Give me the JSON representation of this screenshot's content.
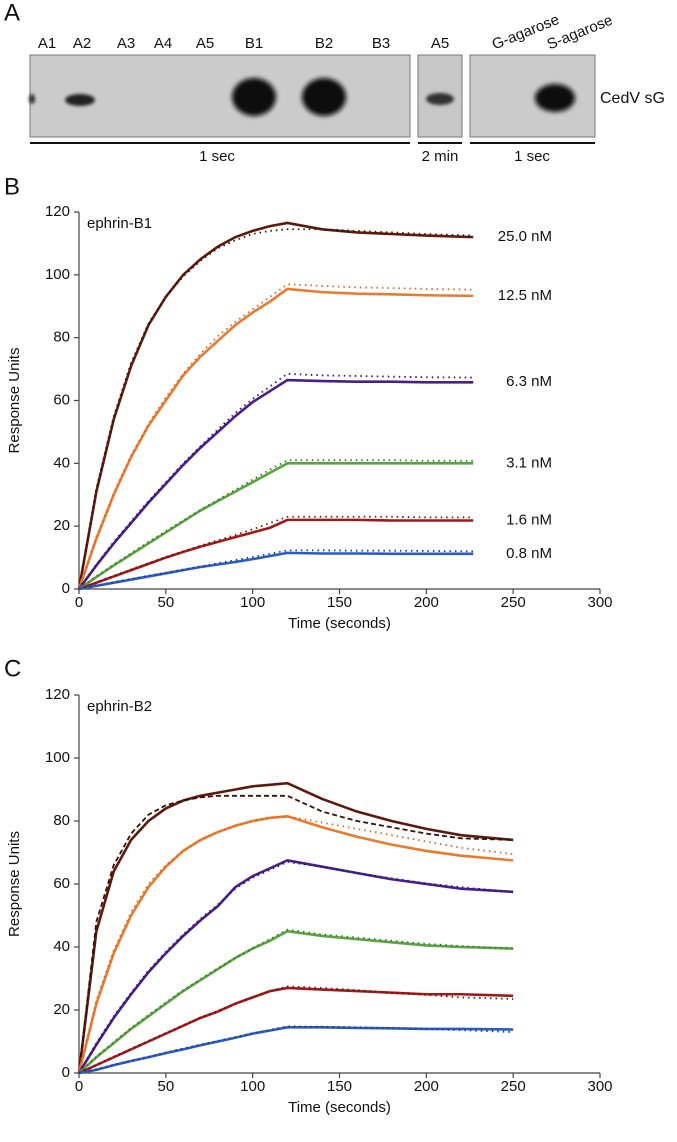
{
  "panel_labels": [
    "A",
    "B",
    "C"
  ],
  "blot": {
    "lanes": [
      "A1",
      "A2",
      "A3",
      "A4",
      "A5",
      "B1",
      "B2",
      "B3"
    ],
    "lane_2min": "A5",
    "lanes_agarose": [
      "G-agarose",
      "S-agarose"
    ],
    "protein": "CedV sG",
    "exposures": [
      "1 sec",
      "2 min",
      "1 sec"
    ]
  },
  "chart_data": [
    {
      "type": "line",
      "title": "ephrin-B1",
      "x_label": "Time (seconds)",
      "y_label": "Response Units",
      "x": [
        0,
        10,
        20,
        30,
        40,
        50,
        60,
        70,
        80,
        90,
        100,
        110,
        120,
        140,
        160,
        180,
        200,
        227
      ],
      "xlim": [
        0,
        300
      ],
      "xticks": [
        0,
        50,
        100,
        150,
        200,
        250,
        300
      ],
      "ylim": [
        0,
        120
      ],
      "yticks": [
        0,
        20,
        40,
        60,
        80,
        100,
        120
      ],
      "series": [
        {
          "name": "25.0 nM",
          "color": "#5b1a0c",
          "values": [
            0,
            31,
            54,
            71,
            84,
            93,
            100,
            105,
            109,
            112,
            114,
            115.5,
            116.5,
            114.5,
            113.5,
            113,
            112.5,
            112
          ]
        },
        {
          "color": "#3a1008",
          "line_style": "dotted",
          "values": [
            0,
            32,
            55,
            72,
            84.5,
            93,
            99.5,
            104.5,
            108.5,
            111,
            113,
            114,
            114.5,
            114.5,
            114,
            113.5,
            113,
            112.5
          ]
        },
        {
          "name": "12.5 nM",
          "color": "#ea7a2c",
          "values": [
            0,
            16,
            30,
            42,
            52,
            60,
            68,
            74,
            79,
            84,
            88,
            91.5,
            95.5,
            94.5,
            94,
            93.8,
            93.5,
            93.3
          ]
        },
        {
          "color": "#e0602a",
          "line_style": "dotted",
          "values": [
            0,
            16.5,
            30.5,
            42.5,
            52.5,
            61,
            68.5,
            75,
            80.5,
            85,
            89,
            93,
            97,
            96.5,
            96,
            95.8,
            95.5,
            95.3
          ]
        },
        {
          "name": "6.3 nM",
          "color": "#4a1d8c",
          "values": [
            0,
            7.5,
            14.5,
            21,
            27.5,
            33.5,
            39.5,
            45,
            50,
            55,
            59.5,
            63,
            66.5,
            66.2,
            66,
            66,
            65.8,
            65.8
          ]
        },
        {
          "color": "#2a1a6a",
          "line_style": "dotted",
          "values": [
            0,
            7.8,
            15,
            21.5,
            28,
            34,
            40,
            45.5,
            50.8,
            56,
            60.5,
            64.5,
            68.5,
            68,
            67.8,
            67.6,
            67.4,
            67.3
          ]
        },
        {
          "name": "3.1 nM",
          "color": "#5aa33e",
          "values": [
            0,
            3.8,
            7.5,
            11,
            14.5,
            18,
            21.5,
            25,
            28,
            31,
            34,
            37,
            40,
            40,
            40,
            40,
            40,
            40
          ]
        },
        {
          "color": "#2f7a2a",
          "line_style": "dotted",
          "values": [
            0,
            4,
            7.8,
            11.4,
            15,
            18.4,
            21.8,
            25.2,
            28.4,
            31.6,
            34.8,
            38,
            41,
            41,
            41,
            41,
            40.8,
            40.8
          ]
        },
        {
          "name": "1.6 nM",
          "color": "#a01818",
          "values": [
            0,
            2,
            4,
            6,
            8,
            10,
            11.8,
            13.5,
            15,
            16.5,
            18,
            19.5,
            22,
            22,
            22,
            21.8,
            21.8,
            21.8
          ]
        },
        {
          "color": "#701010",
          "line_style": "dotted",
          "values": [
            0,
            2.1,
            4.2,
            6.2,
            8.2,
            10.2,
            12,
            13.8,
            15.5,
            17.2,
            19,
            21,
            23,
            23,
            23,
            23,
            22.8,
            22.8
          ]
        },
        {
          "name": "0.8 nM",
          "color": "#2a5bc4",
          "values": [
            0,
            1,
            2,
            3,
            4,
            5,
            6,
            7,
            7.8,
            8.6,
            9.5,
            10.5,
            11.5,
            11.3,
            11.3,
            11.2,
            11.2,
            11.2
          ]
        },
        {
          "color": "#1a3a8a",
          "line_style": "dotted",
          "values": [
            0,
            1.1,
            2.2,
            3.2,
            4.2,
            5.2,
            6.2,
            7.2,
            8.2,
            9.2,
            10.2,
            11.2,
            12.3,
            12.3,
            12.2,
            12.2,
            12.1,
            12
          ]
        }
      ]
    },
    {
      "type": "line",
      "title": "ephrin-B2",
      "x_label": "Time (seconds)",
      "y_label": "Response Units",
      "x": [
        0,
        10,
        20,
        30,
        40,
        50,
        60,
        70,
        80,
        90,
        100,
        110,
        120,
        140,
        160,
        180,
        200,
        220,
        250
      ],
      "xlim": [
        0,
        300
      ],
      "xticks": [
        0,
        50,
        100,
        150,
        200,
        250,
        300
      ],
      "ylim": [
        0,
        120
      ],
      "yticks": [
        0,
        20,
        40,
        60,
        80,
        100,
        120
      ],
      "series": [
        {
          "color": "#5b1a0c",
          "values": [
            0,
            45,
            64,
            74,
            80,
            84,
            86.5,
            88,
            89,
            90,
            91,
            91.5,
            92,
            87,
            83,
            80,
            77.5,
            75.5,
            74
          ]
        },
        {
          "color": "#3a1008",
          "line_style": "dashed",
          "values": [
            0,
            48,
            66,
            76,
            82,
            85,
            86.5,
            87.5,
            88,
            88,
            88,
            88,
            88,
            83,
            80,
            78,
            76,
            74.5,
            74
          ]
        },
        {
          "color": "#ea7a2c",
          "values": [
            0,
            22,
            38,
            50,
            59,
            65.5,
            70.5,
            74,
            76.5,
            78.5,
            80,
            81,
            81.5,
            78,
            75,
            72.5,
            70.5,
            69,
            67.5
          ]
        },
        {
          "color": "#e0602a",
          "line_style": "dotted",
          "values": [
            0,
            23,
            39,
            51,
            60,
            66,
            70.5,
            74,
            76.5,
            78.5,
            80,
            81,
            81.5,
            79.5,
            77.5,
            75.5,
            73.5,
            71.5,
            69.5
          ]
        },
        {
          "color": "#4a1d8c",
          "values": [
            0,
            9,
            17.5,
            25,
            32,
            38,
            43.5,
            48.5,
            53,
            59,
            62.5,
            65,
            67.5,
            65.5,
            63.5,
            61.5,
            60,
            58.5,
            57.5
          ]
        },
        {
          "color": "#2a1a6a",
          "line_style": "dotted",
          "values": [
            0,
            9.5,
            18,
            25.5,
            32.5,
            38.5,
            44,
            49,
            53.5,
            58.5,
            62,
            64.5,
            67,
            65.5,
            63.5,
            61.8,
            60.2,
            59,
            57.5
          ]
        },
        {
          "color": "#5aa33e",
          "values": [
            0,
            5,
            9.5,
            14,
            18,
            22,
            26,
            29.5,
            33,
            36.5,
            39.5,
            42,
            45,
            43.5,
            42.5,
            41.5,
            40.5,
            40,
            39.5
          ]
        },
        {
          "color": "#2f7a2a",
          "line_style": "dotted",
          "values": [
            0,
            5.2,
            9.8,
            14.3,
            18.4,
            22.4,
            26.3,
            29.8,
            33.3,
            36.6,
            39.6,
            42.5,
            45.5,
            44,
            43,
            42,
            41,
            40.3,
            39.5
          ]
        },
        {
          "color": "#a01818",
          "values": [
            0,
            2.5,
            5,
            7.5,
            10,
            12.5,
            15,
            17.5,
            19.5,
            22,
            24,
            26,
            27,
            26.5,
            26,
            25.5,
            25,
            25,
            24.5
          ]
        },
        {
          "color": "#701010",
          "line_style": "dotted",
          "values": [
            0,
            2.6,
            5.2,
            7.7,
            10.2,
            12.7,
            15.2,
            17.6,
            19.8,
            22,
            24,
            26,
            27.5,
            27,
            26.3,
            25.5,
            24.8,
            24,
            23.5
          ]
        },
        {
          "color": "#2a5bc4",
          "values": [
            0,
            1,
            2.5,
            3.8,
            5,
            6.3,
            7.5,
            8.8,
            10,
            11.2,
            12.5,
            13.5,
            14.5,
            14.5,
            14.3,
            14.2,
            14,
            14,
            13.8
          ]
        },
        {
          "color": "#1a3a8a",
          "line_style": "dotted",
          "values": [
            0,
            1.2,
            2.6,
            3.9,
            5.2,
            6.5,
            7.8,
            9,
            10.2,
            11.4,
            12.6,
            13.7,
            14.8,
            14.7,
            14.5,
            14.2,
            14,
            13.6,
            13
          ]
        }
      ]
    }
  ]
}
